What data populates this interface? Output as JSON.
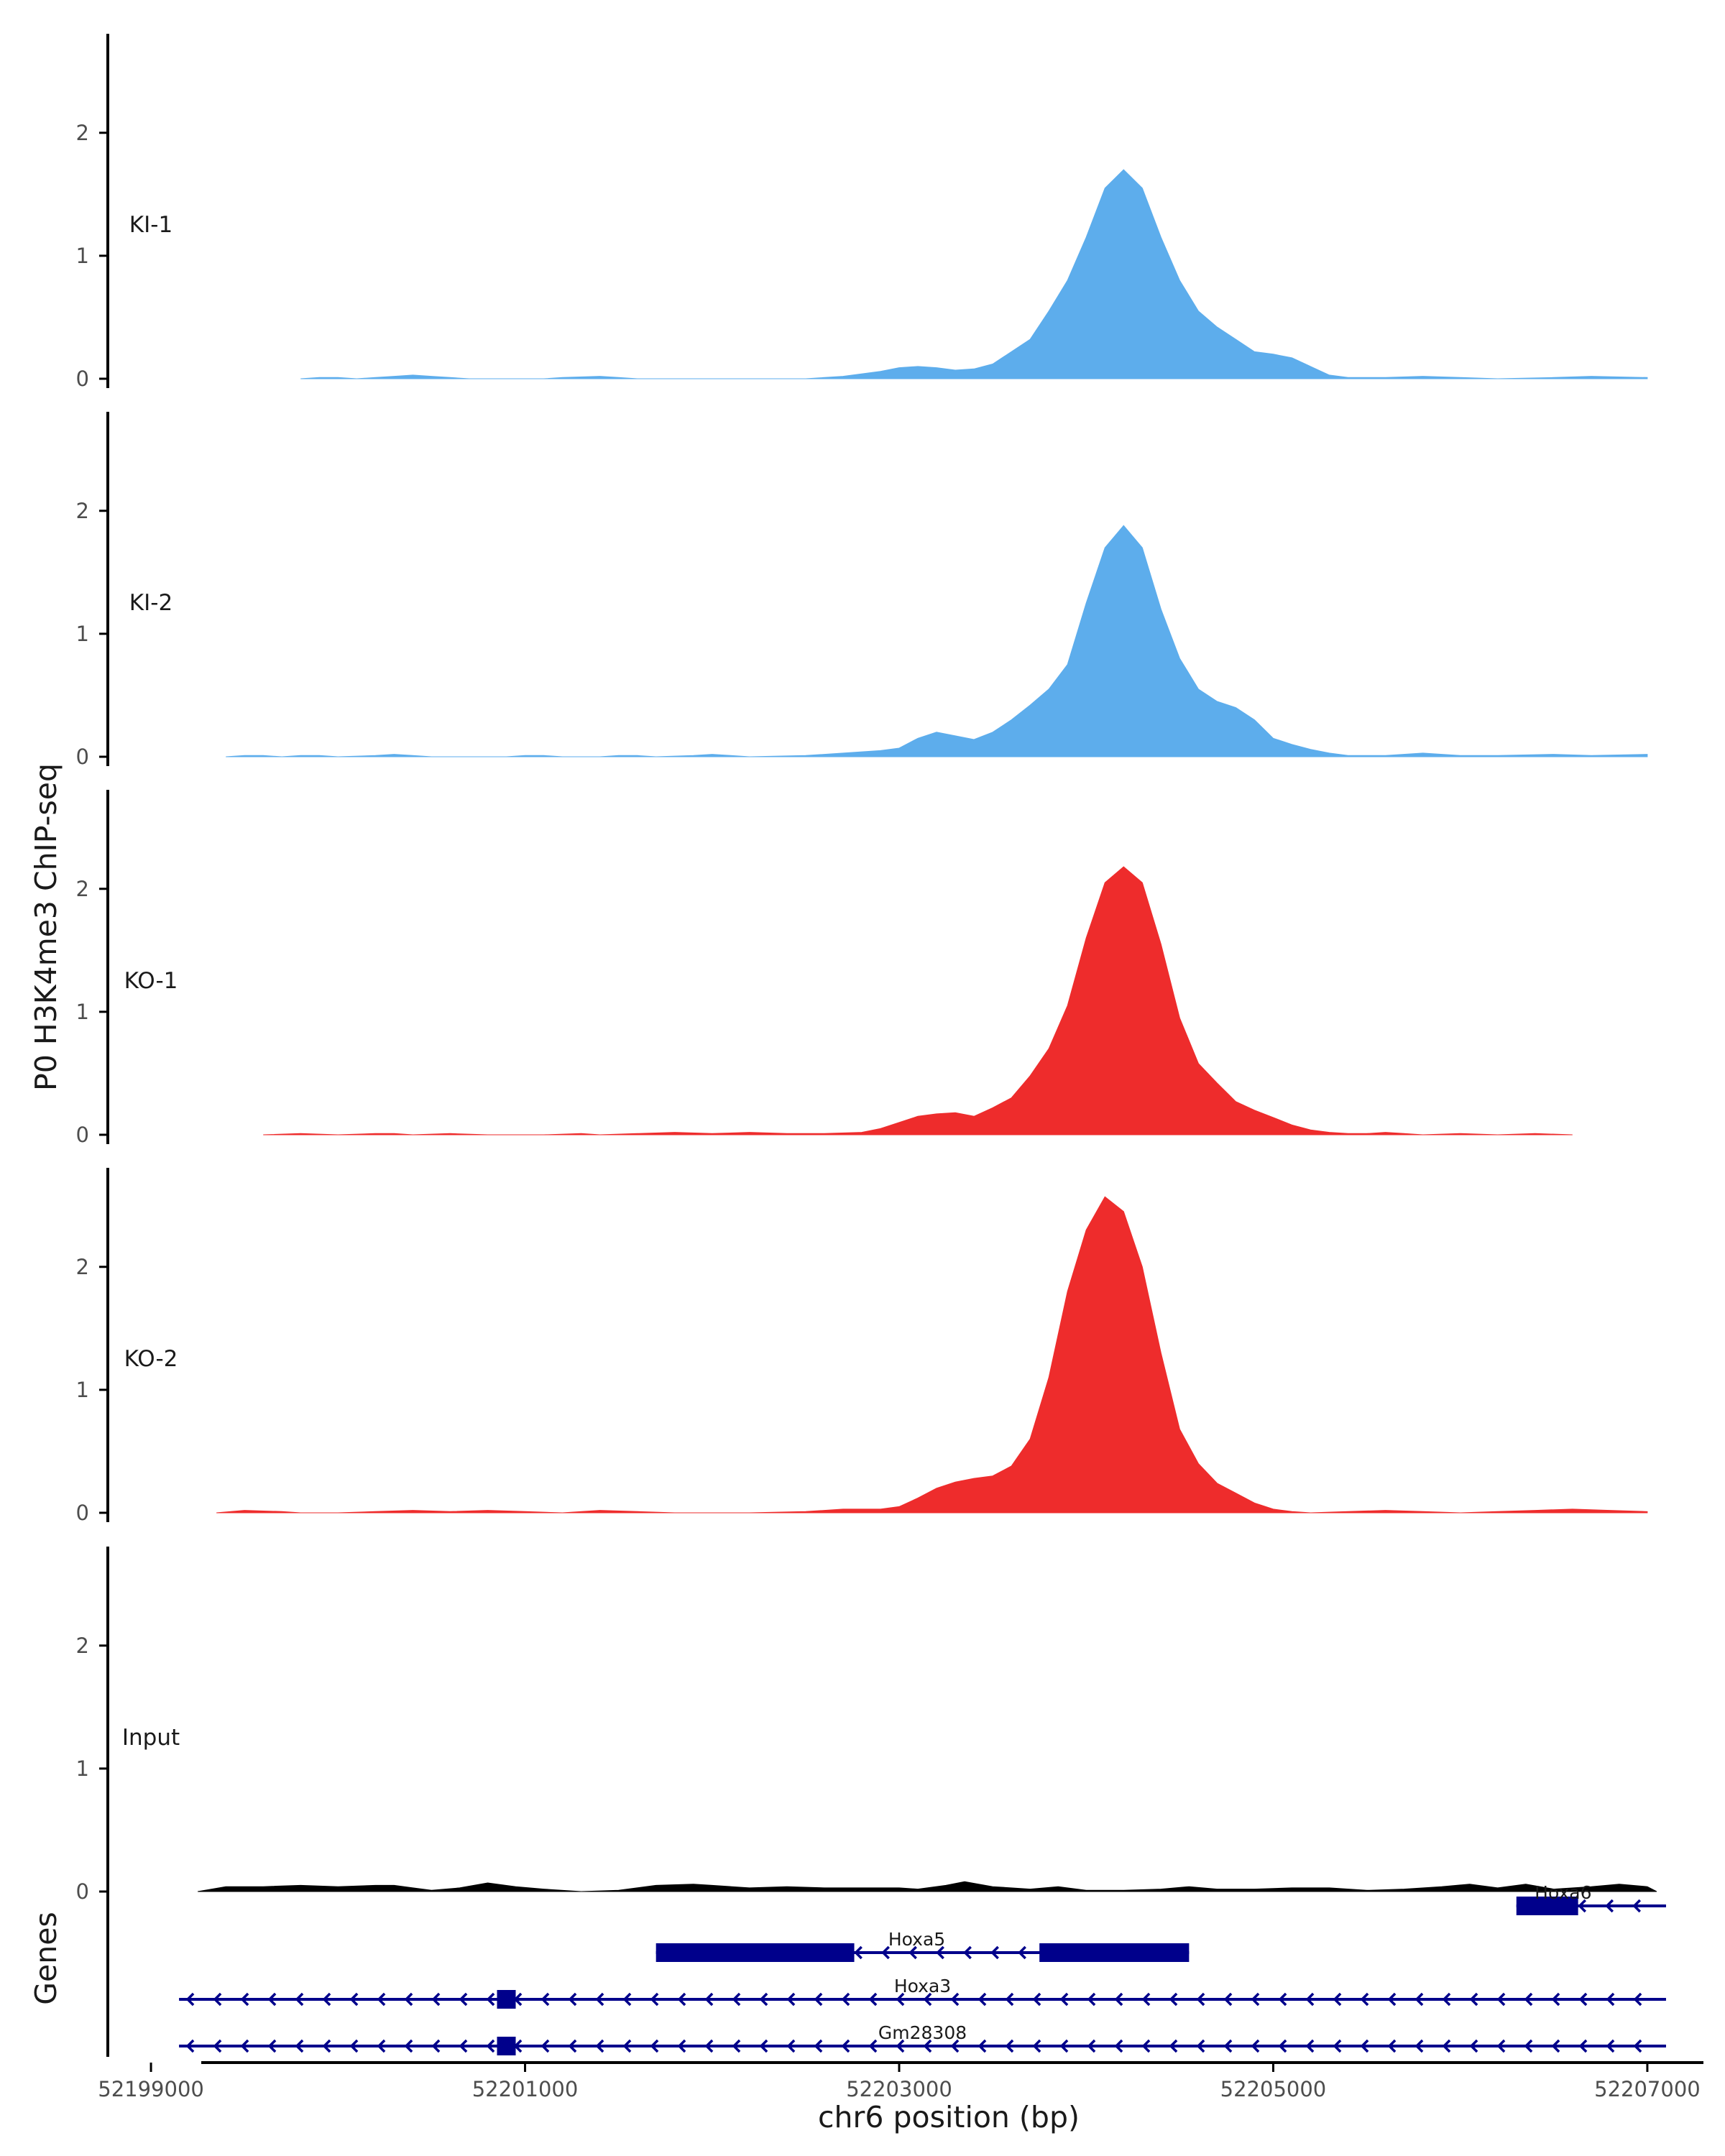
{
  "chart_data": {
    "type": "area",
    "ylabel": "P0 H3K4me3 ChIP-seq",
    "xlabel": "chr6 position (bp)",
    "xlim": [
      52198750,
      52207300
    ],
    "ylim": [
      0,
      2.7
    ],
    "y_ticks": [
      0,
      1,
      2
    ],
    "x_ticks": [
      52199000,
      52201000,
      52203000,
      52205000,
      52207000
    ],
    "x_tick_labels": [
      "52199000",
      "52201000",
      "52203000",
      "52205000",
      "52207000"
    ],
    "tracks": [
      {
        "name": "KI-1",
        "color": "#5DADEC",
        "points": [
          [
            52199800,
            0
          ],
          [
            52199900,
            0.01
          ],
          [
            52200000,
            0.01
          ],
          [
            52200100,
            0
          ],
          [
            52200200,
            0.01
          ],
          [
            52200300,
            0.02
          ],
          [
            52200400,
            0.03
          ],
          [
            52200500,
            0.02
          ],
          [
            52200600,
            0.01
          ],
          [
            52200700,
            0
          ],
          [
            52200900,
            0
          ],
          [
            52201100,
            0
          ],
          [
            52201200,
            0.01
          ],
          [
            52201400,
            0.02
          ],
          [
            52201500,
            0.01
          ],
          [
            52201600,
            0
          ],
          [
            52202000,
            0
          ],
          [
            52202200,
            0
          ],
          [
            52202500,
            0
          ],
          [
            52202700,
            0.02
          ],
          [
            52202900,
            0.06
          ],
          [
            52203000,
            0.09
          ],
          [
            52203100,
            0.1
          ],
          [
            52203200,
            0.09
          ],
          [
            52203300,
            0.07
          ],
          [
            52203400,
            0.08
          ],
          [
            52203500,
            0.12
          ],
          [
            52203600,
            0.22
          ],
          [
            52203700,
            0.32
          ],
          [
            52203800,
            0.55
          ],
          [
            52203900,
            0.8
          ],
          [
            52204000,
            1.15
          ],
          [
            52204100,
            1.55
          ],
          [
            52204200,
            1.7
          ],
          [
            52204300,
            1.55
          ],
          [
            52204400,
            1.15
          ],
          [
            52204500,
            0.8
          ],
          [
            52204600,
            0.55
          ],
          [
            52204700,
            0.42
          ],
          [
            52204800,
            0.32
          ],
          [
            52204900,
            0.22
          ],
          [
            52205000,
            0.2
          ],
          [
            52205100,
            0.17
          ],
          [
            52205200,
            0.1
          ],
          [
            52205300,
            0.03
          ],
          [
            52205400,
            0.01
          ],
          [
            52205600,
            0.01
          ],
          [
            52205800,
            0.02
          ],
          [
            52206000,
            0.01
          ],
          [
            52206200,
            0
          ],
          [
            52206500,
            0.01
          ],
          [
            52206700,
            0.02
          ],
          [
            52207000,
            0.01
          ]
        ]
      },
      {
        "name": "KI-2",
        "color": "#5DADEC",
        "points": [
          [
            52199400,
            0
          ],
          [
            52199500,
            0.01
          ],
          [
            52199600,
            0.01
          ],
          [
            52199700,
            0
          ],
          [
            52199800,
            0.01
          ],
          [
            52199900,
            0.01
          ],
          [
            52200000,
            0
          ],
          [
            52200200,
            0.01
          ],
          [
            52200300,
            0.02
          ],
          [
            52200400,
            0.01
          ],
          [
            52200500,
            0
          ],
          [
            52200900,
            0
          ],
          [
            52201000,
            0.01
          ],
          [
            52201100,
            0.01
          ],
          [
            52201200,
            0
          ],
          [
            52201400,
            0
          ],
          [
            52201500,
            0.01
          ],
          [
            52201600,
            0.01
          ],
          [
            52201700,
            0
          ],
          [
            52201900,
            0.01
          ],
          [
            52202000,
            0.02
          ],
          [
            52202100,
            0.01
          ],
          [
            52202200,
            0
          ],
          [
            52202500,
            0.01
          ],
          [
            52202700,
            0.03
          ],
          [
            52202900,
            0.05
          ],
          [
            52203000,
            0.07
          ],
          [
            52203100,
            0.15
          ],
          [
            52203200,
            0.2
          ],
          [
            52203300,
            0.17
          ],
          [
            52203400,
            0.14
          ],
          [
            52203500,
            0.2
          ],
          [
            52203600,
            0.3
          ],
          [
            52203700,
            0.42
          ],
          [
            52203800,
            0.55
          ],
          [
            52203900,
            0.75
          ],
          [
            52204000,
            1.25
          ],
          [
            52204100,
            1.7
          ],
          [
            52204200,
            1.88
          ],
          [
            52204300,
            1.7
          ],
          [
            52204400,
            1.2
          ],
          [
            52204500,
            0.8
          ],
          [
            52204600,
            0.55
          ],
          [
            52204700,
            0.45
          ],
          [
            52204800,
            0.4
          ],
          [
            52204900,
            0.3
          ],
          [
            52205000,
            0.15
          ],
          [
            52205100,
            0.1
          ],
          [
            52205200,
            0.06
          ],
          [
            52205300,
            0.03
          ],
          [
            52205400,
            0.01
          ],
          [
            52205600,
            0.01
          ],
          [
            52205800,
            0.03
          ],
          [
            52206000,
            0.01
          ],
          [
            52206200,
            0.01
          ],
          [
            52206500,
            0.02
          ],
          [
            52206700,
            0.01
          ],
          [
            52207000,
            0.02
          ]
        ]
      },
      {
        "name": "KO-1",
        "color": "#EE2C2C",
        "points": [
          [
            52199600,
            0
          ],
          [
            52199800,
            0.01
          ],
          [
            52200000,
            0
          ],
          [
            52200200,
            0.01
          ],
          [
            52200300,
            0.01
          ],
          [
            52200400,
            0
          ],
          [
            52200600,
            0.01
          ],
          [
            52200800,
            0
          ],
          [
            52201100,
            0
          ],
          [
            52201300,
            0.01
          ],
          [
            52201400,
            0
          ],
          [
            52201600,
            0.01
          ],
          [
            52201800,
            0.02
          ],
          [
            52202000,
            0.01
          ],
          [
            52202200,
            0.02
          ],
          [
            52202400,
            0.01
          ],
          [
            52202600,
            0.01
          ],
          [
            52202800,
            0.02
          ],
          [
            52202900,
            0.05
          ],
          [
            52203000,
            0.1
          ],
          [
            52203100,
            0.15
          ],
          [
            52203200,
            0.17
          ],
          [
            52203300,
            0.18
          ],
          [
            52203400,
            0.15
          ],
          [
            52203500,
            0.22
          ],
          [
            52203600,
            0.3
          ],
          [
            52203700,
            0.48
          ],
          [
            52203800,
            0.7
          ],
          [
            52203900,
            1.05
          ],
          [
            52204000,
            1.6
          ],
          [
            52204100,
            2.05
          ],
          [
            52204200,
            2.18
          ],
          [
            52204300,
            2.05
          ],
          [
            52204400,
            1.55
          ],
          [
            52204500,
            0.95
          ],
          [
            52204600,
            0.58
          ],
          [
            52204700,
            0.42
          ],
          [
            52204800,
            0.27
          ],
          [
            52204900,
            0.2
          ],
          [
            52205000,
            0.14
          ],
          [
            52205100,
            0.08
          ],
          [
            52205200,
            0.04
          ],
          [
            52205300,
            0.02
          ],
          [
            52205400,
            0.01
          ],
          [
            52205500,
            0.01
          ],
          [
            52205600,
            0.02
          ],
          [
            52205700,
            0.01
          ],
          [
            52205800,
            0
          ],
          [
            52206000,
            0.01
          ],
          [
            52206200,
            0
          ],
          [
            52206400,
            0.01
          ],
          [
            52206600,
            0
          ]
        ]
      },
      {
        "name": "KO-2",
        "color": "#EE2C2C",
        "points": [
          [
            52199350,
            0
          ],
          [
            52199500,
            0.02
          ],
          [
            52199700,
            0.01
          ],
          [
            52199800,
            0
          ],
          [
            52200000,
            0
          ],
          [
            52200200,
            0.01
          ],
          [
            52200400,
            0.02
          ],
          [
            52200600,
            0.01
          ],
          [
            52200800,
            0.02
          ],
          [
            52201000,
            0.01
          ],
          [
            52201200,
            0
          ],
          [
            52201400,
            0.02
          ],
          [
            52201600,
            0.01
          ],
          [
            52201800,
            0
          ],
          [
            52202000,
            0
          ],
          [
            52202200,
            0
          ],
          [
            52202500,
            0.01
          ],
          [
            52202700,
            0.03
          ],
          [
            52202900,
            0.03
          ],
          [
            52203000,
            0.05
          ],
          [
            52203100,
            0.12
          ],
          [
            52203200,
            0.2
          ],
          [
            52203300,
            0.25
          ],
          [
            52203400,
            0.28
          ],
          [
            52203500,
            0.3
          ],
          [
            52203600,
            0.38
          ],
          [
            52203700,
            0.6
          ],
          [
            52203800,
            1.1
          ],
          [
            52203900,
            1.8
          ],
          [
            52204000,
            2.3
          ],
          [
            52204100,
            2.57
          ],
          [
            52204200,
            2.45
          ],
          [
            52204300,
            2.0
          ],
          [
            52204400,
            1.3
          ],
          [
            52204500,
            0.68
          ],
          [
            52204600,
            0.4
          ],
          [
            52204700,
            0.24
          ],
          [
            52204800,
            0.16
          ],
          [
            52204900,
            0.08
          ],
          [
            52205000,
            0.03
          ],
          [
            52205100,
            0.01
          ],
          [
            52205200,
            0
          ],
          [
            52205400,
            0.01
          ],
          [
            52205600,
            0.02
          ],
          [
            52205800,
            0.01
          ],
          [
            52206000,
            0
          ],
          [
            52206200,
            0.01
          ],
          [
            52206400,
            0.02
          ],
          [
            52206600,
            0.03
          ],
          [
            52206800,
            0.02
          ],
          [
            52207000,
            0.01
          ]
        ]
      },
      {
        "name": "Input",
        "color": "#000000",
        "points": [
          [
            52199250,
            0
          ],
          [
            52199400,
            0.04
          ],
          [
            52199600,
            0.04
          ],
          [
            52199800,
            0.05
          ],
          [
            52200000,
            0.04
          ],
          [
            52200200,
            0.05
          ],
          [
            52200300,
            0.05
          ],
          [
            52200400,
            0.03
          ],
          [
            52200500,
            0.01
          ],
          [
            52200650,
            0.03
          ],
          [
            52200800,
            0.07
          ],
          [
            52200950,
            0.04
          ],
          [
            52201100,
            0.02
          ],
          [
            52201300,
            0
          ],
          [
            52201500,
            0.01
          ],
          [
            52201700,
            0.05
          ],
          [
            52201900,
            0.06
          ],
          [
            52202000,
            0.05
          ],
          [
            52202200,
            0.03
          ],
          [
            52202400,
            0.04
          ],
          [
            52202600,
            0.03
          ],
          [
            52202800,
            0.03
          ],
          [
            52203000,
            0.03
          ],
          [
            52203100,
            0.02
          ],
          [
            52203250,
            0.05
          ],
          [
            52203350,
            0.08
          ],
          [
            52203500,
            0.04
          ],
          [
            52203700,
            0.02
          ],
          [
            52203850,
            0.04
          ],
          [
            52204000,
            0.01
          ],
          [
            52204200,
            0.01
          ],
          [
            52204400,
            0.02
          ],
          [
            52204550,
            0.04
          ],
          [
            52204700,
            0.02
          ],
          [
            52204900,
            0.02
          ],
          [
            52205100,
            0.03
          ],
          [
            52205300,
            0.03
          ],
          [
            52205500,
            0.01
          ],
          [
            52205700,
            0.02
          ],
          [
            52205900,
            0.04
          ],
          [
            52206050,
            0.06
          ],
          [
            52206200,
            0.03
          ],
          [
            52206350,
            0.06
          ],
          [
            52206500,
            0.02
          ],
          [
            52206700,
            0.04
          ],
          [
            52206850,
            0.06
          ],
          [
            52207000,
            0.04
          ],
          [
            52207050,
            0
          ]
        ]
      }
    ],
    "gene_track_label": "Genes",
    "gene_color": "#00008B",
    "genes": [
      {
        "name": "Hoxa6",
        "start": 52206300,
        "end": 52207100,
        "strand": "-",
        "exons": [
          [
            52206300,
            52206630
          ]
        ]
      },
      {
        "name": "Hoxa5",
        "start": 52201700,
        "end": 52204550,
        "strand": "-",
        "exons": [
          [
            52201700,
            52202760
          ],
          [
            52203750,
            52204550
          ]
        ]
      },
      {
        "name": "Hoxa3",
        "start": 52199150,
        "end": 52207100,
        "strand": "-",
        "exons": [
          [
            52200850,
            52200950
          ]
        ]
      },
      {
        "name": "Gm28308",
        "start": 52199150,
        "end": 52207100,
        "strand": "-",
        "exons": [
          [
            52200850,
            52200950
          ]
        ]
      }
    ]
  }
}
